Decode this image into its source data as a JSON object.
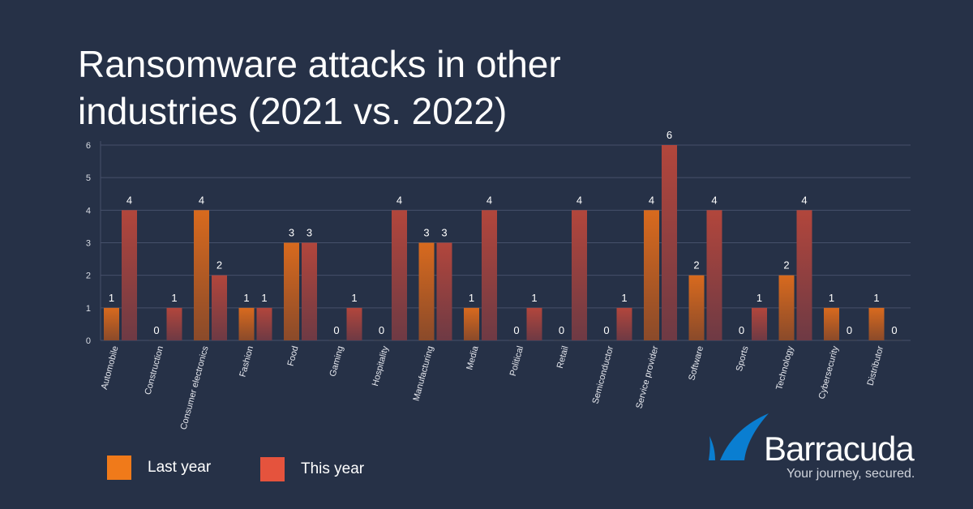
{
  "title": "Ransomware attacks in other industries (2021 vs. 2022)",
  "chart_data": {
    "type": "bar",
    "title": "Ransomware attacks in other industries (2021 vs. 2022)",
    "categories": [
      "Automobile",
      "Construction",
      "Consumer electronics",
      "Fashion",
      "Food",
      "Gaming",
      "Hospitality",
      "Manufacturing",
      "Media",
      "Political",
      "Retail",
      "Semiconductor",
      "Service provider",
      "Software",
      "Sports",
      "Technology",
      "Cybersecurity",
      "Distributor"
    ],
    "series": [
      {
        "name": "Last year",
        "color": "#f07a1a",
        "values": [
          1,
          0,
          4,
          1,
          3,
          0,
          0,
          3,
          1,
          0,
          0,
          0,
          4,
          2,
          0,
          2,
          1,
          1
        ]
      },
      {
        "name": "This year",
        "color": "#e5533d",
        "values": [
          4,
          1,
          2,
          1,
          3,
          1,
          4,
          3,
          4,
          1,
          4,
          1,
          6,
          4,
          1,
          4,
          0,
          0
        ]
      }
    ],
    "yticks": [
      0,
      1,
      2,
      3,
      4,
      5,
      6
    ],
    "ylim": [
      0,
      6
    ],
    "grid": true,
    "legend": "bottom-left",
    "data_labels": true
  },
  "legend": {
    "items": [
      {
        "label": "Last year",
        "color": "#f07a1a"
      },
      {
        "label": "This year",
        "color": "#e5533d"
      }
    ]
  },
  "logo": {
    "name": "Barracuda",
    "tagline": "Your journey, secured.",
    "color": "#0a7ed1"
  }
}
